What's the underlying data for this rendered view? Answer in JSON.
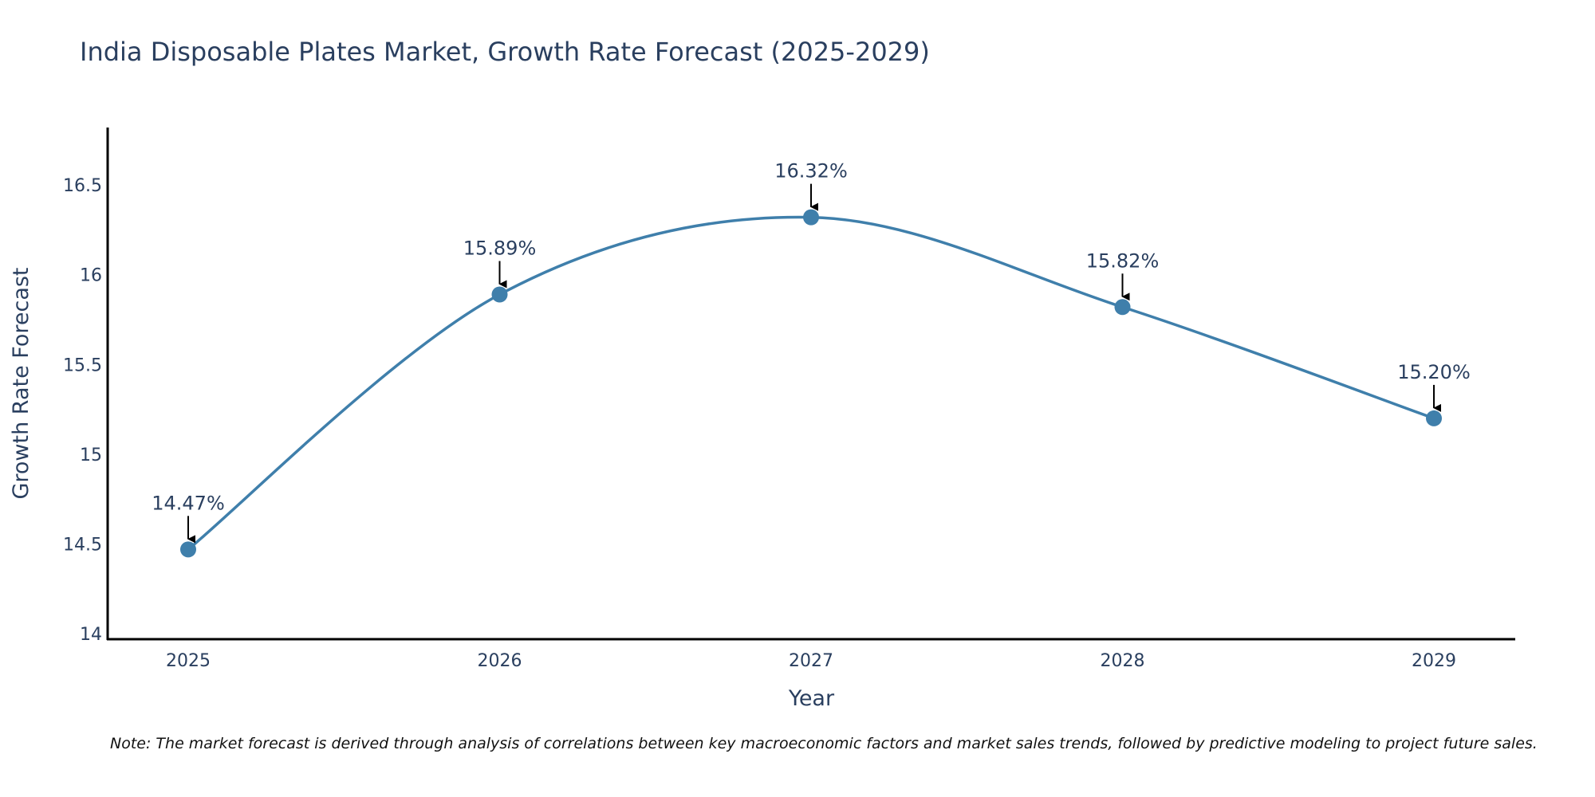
{
  "chart_data": {
    "type": "line",
    "title": "India Disposable Plates Market, Growth Rate Forecast (2025-2029)",
    "xlabel": "Year",
    "ylabel": "Growth Rate Forecast",
    "categories": [
      "2025",
      "2026",
      "2027",
      "2028",
      "2029"
    ],
    "series": [
      {
        "name": "Growth Rate Forecast",
        "values": [
          14.47,
          15.89,
          16.32,
          15.82,
          15.2
        ],
        "labels": [
          "14.47%",
          "15.89%",
          "16.32%",
          "15.82%",
          "15.20%"
        ]
      }
    ],
    "yticks": [
      14,
      14.5,
      15,
      15.5,
      16,
      16.5
    ],
    "ytick_labels": [
      "14",
      "14.5",
      "15",
      "15.5",
      "16",
      "16.5"
    ],
    "ylim": [
      13.97,
      16.82
    ],
    "grid": false,
    "line_shape": "spline",
    "colors": {
      "line": "#3f7fab",
      "marker": "#3f7fab",
      "axis": "#000000",
      "text": "#2a3f5f",
      "arrow": "#000000"
    },
    "note": "Note: The market forecast is derived through analysis of correlations between key macroeconomic factors and market sales trends, followed by predictive modeling to project future sales."
  }
}
